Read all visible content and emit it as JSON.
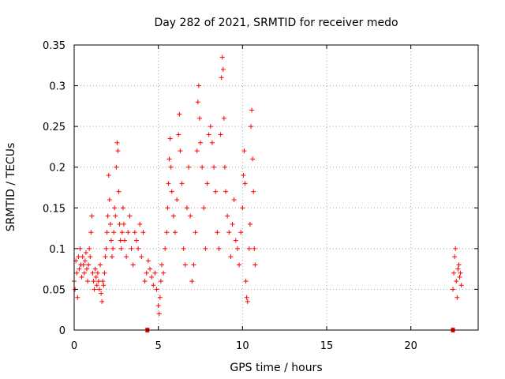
{
  "chart_data": {
    "type": "scatter",
    "title": "Day 282 of 2021, SRMTID for receiver medo",
    "xlabel": "GPS time / hours",
    "ylabel": "SRMTID / TECUs",
    "xlim": [
      0,
      24
    ],
    "ylim": [
      0,
      0.35
    ],
    "grid": true,
    "color": "#ff0000",
    "marker": "plus",
    "xticks": [
      "0",
      "5",
      "10",
      "15",
      "20"
    ],
    "yticks": [
      "0",
      "0.05",
      "0.1",
      "0.15",
      "0.2",
      "0.25",
      "0.3",
      "0.35"
    ],
    "series": [
      {
        "name": "SRMTID",
        "points": [
          [
            0.0,
            0.06
          ],
          [
            0.05,
            0.05
          ],
          [
            0.1,
            0.085
          ],
          [
            0.15,
            0.07
          ],
          [
            0.2,
            0.04
          ],
          [
            0.25,
            0.09
          ],
          [
            0.3,
            0.075
          ],
          [
            0.35,
            0.1
          ],
          [
            0.4,
            0.08
          ],
          [
            0.45,
            0.065
          ],
          [
            0.5,
            0.09
          ],
          [
            0.55,
            0.08
          ],
          [
            0.6,
            0.07
          ],
          [
            0.65,
            0.085
          ],
          [
            0.7,
            0.095
          ],
          [
            0.75,
            0.075
          ],
          [
            0.8,
            0.06
          ],
          [
            0.85,
            0.08
          ],
          [
            0.9,
            0.1
          ],
          [
            0.95,
            0.09
          ],
          [
            1.0,
            0.12
          ],
          [
            1.05,
            0.14
          ],
          [
            1.1,
            0.07
          ],
          [
            1.15,
            0.06
          ],
          [
            1.2,
            0.05
          ],
          [
            1.25,
            0.075
          ],
          [
            1.3,
            0.065
          ],
          [
            1.35,
            0.055
          ],
          [
            1.4,
            0.07
          ],
          [
            1.45,
            0.06
          ],
          [
            1.5,
            0.05
          ],
          [
            1.55,
            0.08
          ],
          [
            1.6,
            0.045
          ],
          [
            1.65,
            0.035
          ],
          [
            1.7,
            0.06
          ],
          [
            1.75,
            0.055
          ],
          [
            1.8,
            0.07
          ],
          [
            1.85,
            0.09
          ],
          [
            1.9,
            0.1
          ],
          [
            1.95,
            0.12
          ],
          [
            2.0,
            0.14
          ],
          [
            2.05,
            0.19
          ],
          [
            2.1,
            0.16
          ],
          [
            2.15,
            0.13
          ],
          [
            2.2,
            0.11
          ],
          [
            2.25,
            0.09
          ],
          [
            2.3,
            0.1
          ],
          [
            2.35,
            0.12
          ],
          [
            2.4,
            0.15
          ],
          [
            2.45,
            0.14
          ],
          [
            2.5,
            0.2
          ],
          [
            2.55,
            0.23
          ],
          [
            2.6,
            0.22
          ],
          [
            2.65,
            0.17
          ],
          [
            2.7,
            0.13
          ],
          [
            2.75,
            0.11
          ],
          [
            2.8,
            0.1
          ],
          [
            2.85,
            0.12
          ],
          [
            2.9,
            0.15
          ],
          [
            2.95,
            0.13
          ],
          [
            3.0,
            0.11
          ],
          [
            3.1,
            0.09
          ],
          [
            3.2,
            0.12
          ],
          [
            3.3,
            0.14
          ],
          [
            3.4,
            0.1
          ],
          [
            3.5,
            0.08
          ],
          [
            3.6,
            0.12
          ],
          [
            3.7,
            0.11
          ],
          [
            3.8,
            0.1
          ],
          [
            3.9,
            0.13
          ],
          [
            4.0,
            0.09
          ],
          [
            4.1,
            0.12
          ],
          [
            4.2,
            0.06
          ],
          [
            4.3,
            0.07
          ],
          [
            4.4,
            0.085
          ],
          [
            4.5,
            0.075
          ],
          [
            4.6,
            0.065
          ],
          [
            4.7,
            0.055
          ],
          [
            4.8,
            0.07
          ],
          [
            4.9,
            0.05
          ],
          [
            5.0,
            0.03
          ],
          [
            5.05,
            0.02
          ],
          [
            5.1,
            0.04
          ],
          [
            5.15,
            0.06
          ],
          [
            5.2,
            0.08
          ],
          [
            5.3,
            0.07
          ],
          [
            5.4,
            0.1
          ],
          [
            5.5,
            0.12
          ],
          [
            5.55,
            0.15
          ],
          [
            5.6,
            0.18
          ],
          [
            5.65,
            0.21
          ],
          [
            5.7,
            0.235
          ],
          [
            5.75,
            0.2
          ],
          [
            5.8,
            0.17
          ],
          [
            5.9,
            0.14
          ],
          [
            6.0,
            0.12
          ],
          [
            6.1,
            0.16
          ],
          [
            6.2,
            0.24
          ],
          [
            6.25,
            0.265
          ],
          [
            6.3,
            0.22
          ],
          [
            6.4,
            0.18
          ],
          [
            6.5,
            0.1
          ],
          [
            6.6,
            0.08
          ],
          [
            6.7,
            0.15
          ],
          [
            6.8,
            0.2
          ],
          [
            6.9,
            0.14
          ],
          [
            7.0,
            0.06
          ],
          [
            7.1,
            0.08
          ],
          [
            7.2,
            0.12
          ],
          [
            7.3,
            0.22
          ],
          [
            7.35,
            0.28
          ],
          [
            7.4,
            0.3
          ],
          [
            7.45,
            0.26
          ],
          [
            7.5,
            0.23
          ],
          [
            7.6,
            0.2
          ],
          [
            7.7,
            0.15
          ],
          [
            7.8,
            0.1
          ],
          [
            7.9,
            0.18
          ],
          [
            8.0,
            0.24
          ],
          [
            8.1,
            0.25
          ],
          [
            8.2,
            0.23
          ],
          [
            8.3,
            0.2
          ],
          [
            8.4,
            0.17
          ],
          [
            8.5,
            0.12
          ],
          [
            8.6,
            0.1
          ],
          [
            8.7,
            0.24
          ],
          [
            8.75,
            0.31
          ],
          [
            8.8,
            0.335
          ],
          [
            8.85,
            0.32
          ],
          [
            8.9,
            0.26
          ],
          [
            8.95,
            0.2
          ],
          [
            9.0,
            0.17
          ],
          [
            9.1,
            0.14
          ],
          [
            9.2,
            0.12
          ],
          [
            9.3,
            0.09
          ],
          [
            9.4,
            0.13
          ],
          [
            9.5,
            0.16
          ],
          [
            9.6,
            0.11
          ],
          [
            9.7,
            0.1
          ],
          [
            9.8,
            0.08
          ],
          [
            9.9,
            0.12
          ],
          [
            10.0,
            0.15
          ],
          [
            10.05,
            0.19
          ],
          [
            10.1,
            0.22
          ],
          [
            10.15,
            0.18
          ],
          [
            10.2,
            0.06
          ],
          [
            10.25,
            0.04
          ],
          [
            10.3,
            0.035
          ],
          [
            10.4,
            0.1
          ],
          [
            10.45,
            0.13
          ],
          [
            10.5,
            0.25
          ],
          [
            10.55,
            0.27
          ],
          [
            10.6,
            0.21
          ],
          [
            10.65,
            0.17
          ],
          [
            10.7,
            0.1
          ],
          [
            10.75,
            0.08
          ],
          [
            22.5,
            0.05
          ],
          [
            22.55,
            0.07
          ],
          [
            22.6,
            0.09
          ],
          [
            22.65,
            0.1
          ],
          [
            22.7,
            0.06
          ],
          [
            22.75,
            0.04
          ],
          [
            22.8,
            0.075
          ],
          [
            22.85,
            0.08
          ],
          [
            22.9,
            0.065
          ],
          [
            22.95,
            0.07
          ],
          [
            23.0,
            0.055
          ]
        ]
      }
    ],
    "markers_at_zero": [
      4.35,
      22.5
    ]
  }
}
